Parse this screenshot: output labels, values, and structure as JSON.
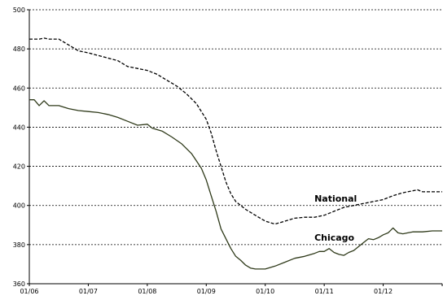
{
  "chart_data": {
    "type": "line",
    "title": "",
    "xlabel": "",
    "ylabel": "",
    "ylim": [
      360,
      500
    ],
    "yticks": [
      360,
      380,
      400,
      420,
      440,
      460,
      480,
      500
    ],
    "y_tick_labels": [
      "360",
      "380",
      "400",
      "420",
      "440",
      "460",
      "480",
      "500"
    ],
    "x_tick_labels": [
      "01/06",
      "01/07",
      "01/08",
      "01/09",
      "01/10",
      "01/11",
      "01/12"
    ],
    "x_range_months": [
      0,
      84
    ],
    "grid": "horizontal dotted",
    "legend": "none (inline series labels)",
    "series": [
      {
        "name": "National",
        "style": "dashed",
        "color": "#000000",
        "label_at_month": 58,
        "label_at_value": 402,
        "points": [
          [
            0,
            485
          ],
          [
            2,
            485
          ],
          [
            3,
            485.5
          ],
          [
            4,
            485
          ],
          [
            6,
            485
          ],
          [
            8,
            482
          ],
          [
            10,
            479
          ],
          [
            12,
            478
          ],
          [
            15,
            476
          ],
          [
            18,
            474
          ],
          [
            20,
            471
          ],
          [
            22,
            470
          ],
          [
            24,
            469
          ],
          [
            26,
            467
          ],
          [
            28,
            464
          ],
          [
            30,
            461
          ],
          [
            32,
            457
          ],
          [
            34,
            452
          ],
          [
            36,
            444
          ],
          [
            37,
            437
          ],
          [
            38,
            428
          ],
          [
            39,
            420
          ],
          [
            40,
            412
          ],
          [
            41,
            406
          ],
          [
            42,
            402
          ],
          [
            44,
            398
          ],
          [
            46,
            395
          ],
          [
            48,
            392
          ],
          [
            50,
            390.5
          ],
          [
            52,
            392
          ],
          [
            54,
            393.5
          ],
          [
            56,
            394
          ],
          [
            58,
            394
          ],
          [
            60,
            395
          ],
          [
            62,
            397
          ],
          [
            64,
            399
          ],
          [
            66,
            400
          ],
          [
            68,
            401
          ],
          [
            70,
            402
          ],
          [
            72,
            403
          ],
          [
            74,
            405
          ],
          [
            76,
            406.5
          ],
          [
            78,
            407.5
          ],
          [
            79,
            408
          ],
          [
            80,
            407
          ],
          [
            82,
            407
          ],
          [
            84,
            407
          ]
        ]
      },
      {
        "name": "Chicago",
        "style": "solid",
        "color": "#2f3a1a",
        "label_at_month": 58,
        "label_at_value": 382,
        "points": [
          [
            0,
            454
          ],
          [
            1,
            454
          ],
          [
            2,
            451
          ],
          [
            3,
            453.5
          ],
          [
            4,
            451
          ],
          [
            6,
            451
          ],
          [
            8,
            449.5
          ],
          [
            10,
            448.5
          ],
          [
            12,
            448
          ],
          [
            14,
            447.5
          ],
          [
            16,
            446.5
          ],
          [
            18,
            445
          ],
          [
            20,
            443
          ],
          [
            22,
            441
          ],
          [
            24,
            441.5
          ],
          [
            25,
            439.5
          ],
          [
            27,
            438
          ],
          [
            29,
            435
          ],
          [
            31,
            431.5
          ],
          [
            33,
            426.5
          ],
          [
            35,
            419
          ],
          [
            36,
            413
          ],
          [
            37,
            405
          ],
          [
            38,
            397
          ],
          [
            39,
            388
          ],
          [
            40,
            383
          ],
          [
            41,
            378
          ],
          [
            42,
            374
          ],
          [
            43,
            372
          ],
          [
            44,
            369.5
          ],
          [
            45,
            368
          ],
          [
            46,
            367.5
          ],
          [
            48,
            367.5
          ],
          [
            50,
            369
          ],
          [
            52,
            371
          ],
          [
            54,
            373
          ],
          [
            56,
            374
          ],
          [
            58,
            375.5
          ],
          [
            59,
            376.5
          ],
          [
            60,
            376.5
          ],
          [
            61,
            378
          ],
          [
            62,
            376
          ],
          [
            63,
            375
          ],
          [
            64,
            374.5
          ],
          [
            65,
            376
          ],
          [
            66,
            377
          ],
          [
            67,
            379
          ],
          [
            68,
            381
          ],
          [
            69,
            383
          ],
          [
            70,
            382.5
          ],
          [
            71,
            383.5
          ],
          [
            72,
            385
          ],
          [
            73,
            386
          ],
          [
            74,
            388.5
          ],
          [
            75,
            386
          ],
          [
            76,
            385.5
          ],
          [
            77,
            386
          ],
          [
            78,
            386.5
          ],
          [
            80,
            386.5
          ],
          [
            82,
            387
          ],
          [
            84,
            387
          ]
        ]
      }
    ]
  }
}
